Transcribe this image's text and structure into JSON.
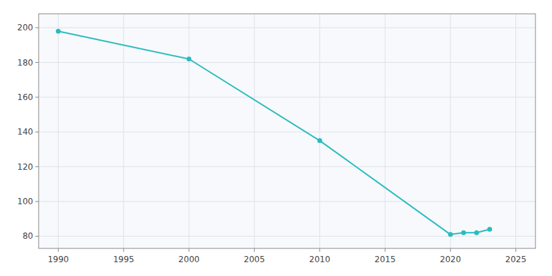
{
  "chart_data": {
    "type": "line",
    "x": [
      1990,
      2000,
      2010,
      2020,
      2021,
      2022,
      2023
    ],
    "values": [
      198,
      182,
      135,
      81,
      82,
      82,
      84
    ],
    "color": "#29BCBE",
    "marker": "circle",
    "xlim": [
      1988.5,
      2026.5
    ],
    "ylim": [
      73,
      208
    ],
    "xticks": [
      1990,
      1995,
      2000,
      2005,
      2010,
      2015,
      2020,
      2025
    ],
    "yticks": [
      80,
      100,
      120,
      140,
      160,
      180,
      200
    ],
    "grid": true
  }
}
